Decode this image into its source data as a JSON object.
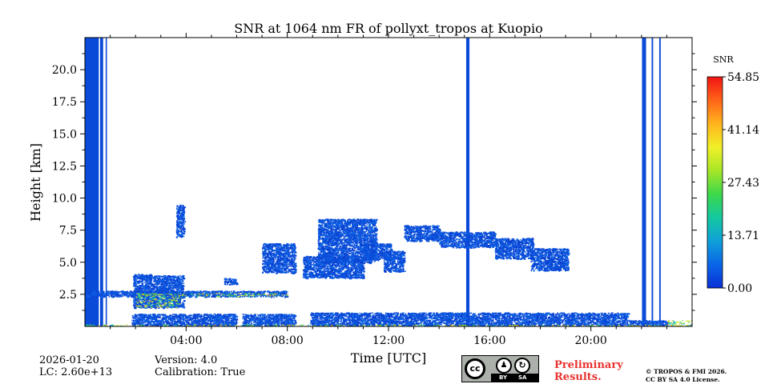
{
  "chart_data": {
    "type": "heatmap",
    "title": "SNR at 1064 nm FR of pollyxt_tropos at Kuopio",
    "xlabel": "Time [UTC]",
    "ylabel": "Height [km]",
    "xlim_hours": [
      0,
      24
    ],
    "ylim_km": [
      0,
      22.5
    ],
    "x_ticks": [
      {
        "value": 4,
        "label": "04:00"
      },
      {
        "value": 8,
        "label": "08:00"
      },
      {
        "value": 12,
        "label": "12:00"
      },
      {
        "value": 16,
        "label": "16:00"
      },
      {
        "value": 20,
        "label": "20:00"
      }
    ],
    "y_ticks": [
      {
        "value": 2.5,
        "label": "2.5"
      },
      {
        "value": 5,
        "label": "5.0"
      },
      {
        "value": 7.5,
        "label": "7.5"
      },
      {
        "value": 10,
        "label": "10.0"
      },
      {
        "value": 12.5,
        "label": "12.5"
      },
      {
        "value": 15,
        "label": "15.0"
      },
      {
        "value": 17.5,
        "label": "17.5"
      },
      {
        "value": 20,
        "label": "20.0"
      }
    ],
    "colorbar": {
      "label": "SNR",
      "min": 0,
      "max": 54.85,
      "ticks": [
        {
          "value": 0,
          "label": "0.00"
        },
        {
          "value": 13.71,
          "label": "13.71"
        },
        {
          "value": 27.43,
          "label": "27.43"
        },
        {
          "value": 41.14,
          "label": "41.14"
        },
        {
          "value": 54.85,
          "label": "54.85"
        }
      ],
      "colors": [
        "#0a2fd6",
        "#0a66e8",
        "#0fa0d8",
        "#14c8a0",
        "#3cd84a",
        "#a8e628",
        "#f0f028",
        "#ffb41e",
        "#ff6418",
        "#f01414"
      ]
    },
    "full_column_bands": [
      {
        "t0": 0.0,
        "t1": 0.55
      },
      {
        "t0": 0.6,
        "t1": 0.72
      },
      {
        "t0": 0.82,
        "t1": 0.87
      },
      {
        "t0": 15.07,
        "t1": 15.2
      },
      {
        "t0": 22.02,
        "t1": 22.18
      },
      {
        "t0": 22.4,
        "t1": 22.46
      },
      {
        "t0": 22.7,
        "t1": 22.76
      }
    ],
    "aerosol_regions": [
      {
        "t0": 1.85,
        "t1": 6.0,
        "h0": 0.1,
        "h1": 1.0
      },
      {
        "t0": 6.2,
        "t1": 8.3,
        "h0": 0.1,
        "h1": 1.0
      },
      {
        "t0": 8.9,
        "t1": 21.45,
        "h0": 0.1,
        "h1": 1.1
      },
      {
        "t0": 21.5,
        "t1": 23.0,
        "h0": 0.05,
        "h1": 0.5
      },
      {
        "t0": 0.0,
        "t1": 8.0,
        "h0": 2.35,
        "h1": 2.8
      },
      {
        "t0": 1.9,
        "t1": 3.9,
        "h0": 1.5,
        "h1": 4.0
      },
      {
        "t0": 1.9,
        "t1": 2.6,
        "h0": 3.8,
        "h1": 4.1
      },
      {
        "t0": 5.5,
        "t1": 6.0,
        "h0": 3.3,
        "h1": 3.8
      },
      {
        "t0": 7.0,
        "t1": 8.3,
        "h0": 4.2,
        "h1": 6.5
      },
      {
        "t0": 8.6,
        "t1": 11.0,
        "h0": 3.8,
        "h1": 5.5
      },
      {
        "t0": 9.2,
        "t1": 11.5,
        "h0": 5.0,
        "h1": 8.4
      },
      {
        "t0": 11.0,
        "t1": 12.1,
        "h0": 5.2,
        "h1": 6.5
      },
      {
        "t0": 11.8,
        "t1": 12.6,
        "h0": 4.3,
        "h1": 5.9
      },
      {
        "t0": 12.6,
        "t1": 14.0,
        "h0": 6.7,
        "h1": 7.9
      },
      {
        "t0": 14.0,
        "t1": 16.2,
        "h0": 6.2,
        "h1": 7.4
      },
      {
        "t0": 16.2,
        "t1": 17.7,
        "h0": 5.3,
        "h1": 6.9
      },
      {
        "t0": 17.6,
        "t1": 19.1,
        "h0": 4.4,
        "h1": 6.1
      },
      {
        "t0": 3.6,
        "t1": 3.9,
        "h0": 7.0,
        "h1": 9.5
      }
    ],
    "high_snr_regions": [
      {
        "t0": 2.0,
        "t1": 3.8,
        "h0": 1.5,
        "h1": 2.6
      },
      {
        "t0": 3.8,
        "t1": 8.0,
        "h0": 2.35,
        "h1": 2.6
      },
      {
        "t0": 0.0,
        "t1": 24.0,
        "h0": 0.0,
        "h1": 0.15
      },
      {
        "t0": 23.0,
        "t1": 24.0,
        "h0": 0.05,
        "h1": 0.5
      }
    ]
  },
  "footer": {
    "date": "2026-01-20",
    "lc": "LC: 2.60e+13",
    "version": "Version: 4.0",
    "calibration": "Calibration: True",
    "preliminary_line1": "Preliminary",
    "preliminary_line2": "Results.",
    "copyright_line1": "© TROPOS & FMI 2026.",
    "copyright_line2": "CC BY SA 4.0 License.",
    "cc_icon_letters": "cc",
    "cc_by": "BY",
    "cc_sa": "SA"
  }
}
